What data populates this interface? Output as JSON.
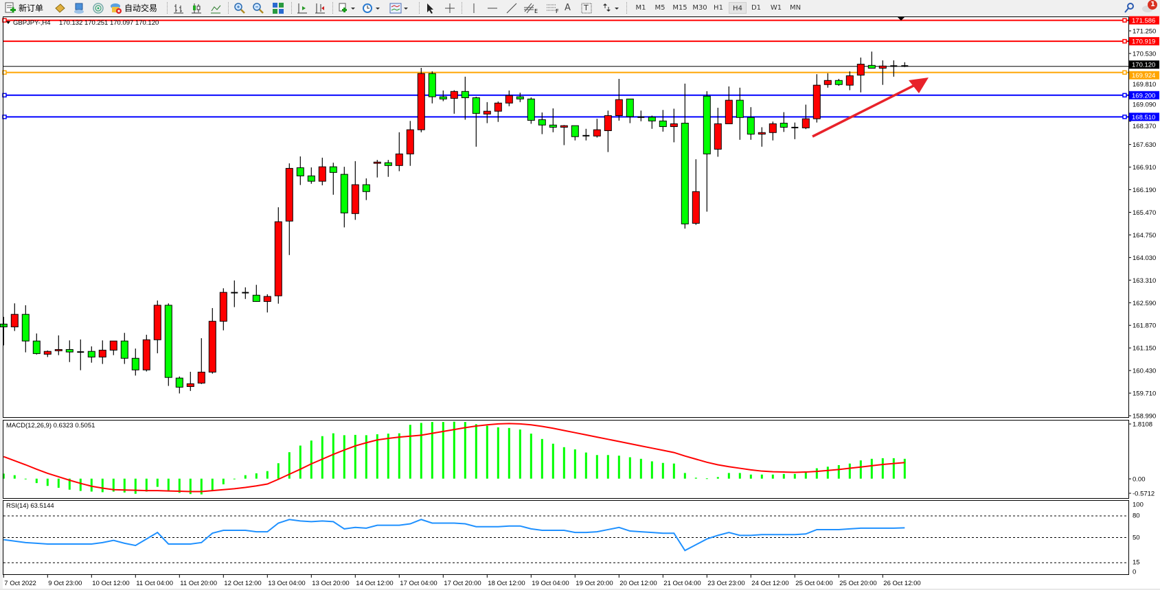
{
  "toolbar": {
    "new_order": "新订单",
    "auto_trading": "自动交易",
    "timeframes": [
      "M1",
      "M5",
      "M15",
      "M30",
      "H1",
      "H4",
      "D1",
      "W1",
      "MN"
    ],
    "active_timeframe": "H4",
    "notification_count": "1",
    "drawing_tools": {
      "fibo_channel_letter": "E",
      "fibo_retracement_letter": "F",
      "text": "A",
      "text_label": "T"
    }
  },
  "chart": {
    "symbol_info": "GBPJPY-,H4",
    "ohlc": "170.132 170.251 170.097 170.120",
    "colors": {
      "bull": "#ff0000",
      "bear": "#00ff00",
      "background": "#ffffff",
      "foreground": "#000000"
    },
    "price_axis_ticks": [
      "171.250",
      "170.530",
      "169.810",
      "169.090",
      "168.370",
      "167.630",
      "166.910",
      "166.190",
      "165.470",
      "164.750",
      "164.030",
      "163.310",
      "162.590",
      "161.870",
      "161.150",
      "160.430",
      "159.710",
      "158.990"
    ],
    "current_price": "170.120",
    "horizontal_lines": [
      {
        "price": "171.586",
        "color": "#ff0000"
      },
      {
        "price": "170.919",
        "color": "#ff0000"
      },
      {
        "price": "169.924",
        "color": "#ffa500"
      },
      {
        "price": "169.200",
        "color": "#0000ff"
      },
      {
        "price": "168.510",
        "color": "#0000ff"
      }
    ],
    "trend_arrow_color": "#e8222a",
    "time_labels": [
      "7 Oct 2022",
      "9 Oct 23:00",
      "10 Oct 12:00",
      "11 Oct 04:00",
      "11 Oct 20:00",
      "12 Oct 12:00",
      "13 Oct 04:00",
      "13 Oct 20:00",
      "14 Oct 12:00",
      "17 Oct 04:00",
      "17 Oct 20:00",
      "18 Oct 12:00",
      "19 Oct 04:00",
      "19 Oct 20:00",
      "20 Oct 12:00",
      "21 Oct 04:00",
      "23 Oct 23:00",
      "24 Oct 12:00",
      "25 Oct 04:00",
      "25 Oct 20:00",
      "26 Oct 12:00"
    ],
    "candles_ohlc": [
      [
        161.91,
        162.14,
        161.23,
        161.82
      ],
      [
        161.82,
        162.57,
        161.69,
        162.22
      ],
      [
        162.22,
        162.51,
        161.01,
        161.37
      ],
      [
        161.37,
        161.61,
        160.94,
        160.97
      ],
      [
        160.95,
        161.07,
        160.86,
        161.04
      ],
      [
        161.06,
        161.55,
        160.92,
        161.1
      ],
      [
        161.1,
        161.39,
        160.7,
        161.02
      ],
      [
        161.02,
        161.42,
        160.44,
        161.02
      ],
      [
        161.04,
        161.2,
        160.68,
        160.86
      ],
      [
        160.86,
        161.39,
        160.64,
        161.08
      ],
      [
        161.08,
        161.37,
        160.92,
        161.37
      ],
      [
        161.37,
        161.63,
        160.64,
        160.82
      ],
      [
        160.82,
        161.13,
        160.27,
        160.45
      ],
      [
        160.45,
        161.57,
        160.4,
        161.41
      ],
      [
        161.41,
        162.66,
        160.98,
        162.51
      ],
      [
        162.51,
        162.57,
        159.94,
        160.21
      ],
      [
        160.19,
        160.24,
        159.7,
        159.9
      ],
      [
        159.92,
        160.39,
        159.78,
        160.01
      ],
      [
        160.03,
        161.46,
        160.0,
        160.38
      ],
      [
        160.38,
        162.42,
        160.33,
        162.0
      ],
      [
        162.0,
        163.05,
        161.71,
        162.92
      ],
      [
        162.91,
        163.3,
        162.45,
        162.91
      ],
      [
        162.91,
        163.08,
        162.71,
        162.91
      ],
      [
        162.83,
        163.16,
        162.62,
        162.63
      ],
      [
        162.63,
        162.86,
        162.28,
        162.79
      ],
      [
        162.81,
        165.63,
        162.56,
        165.17
      ],
      [
        165.19,
        167.03,
        164.11,
        166.87
      ],
      [
        166.89,
        167.25,
        166.34,
        166.63
      ],
      [
        166.63,
        166.9,
        166.38,
        166.46
      ],
      [
        166.46,
        167.21,
        166.33,
        166.92
      ],
      [
        166.92,
        167.05,
        166.03,
        166.74
      ],
      [
        166.68,
        166.92,
        164.99,
        165.45
      ],
      [
        165.43,
        167.1,
        165.23,
        166.35
      ],
      [
        166.35,
        166.55,
        165.86,
        166.13
      ],
      [
        167.03,
        167.14,
        166.58,
        167.07
      ],
      [
        167.05,
        167.14,
        166.6,
        166.96
      ],
      [
        166.96,
        168.02,
        166.78,
        167.33
      ],
      [
        167.33,
        168.38,
        166.95,
        168.1
      ],
      [
        168.1,
        170.07,
        168.02,
        169.89
      ],
      [
        169.89,
        169.96,
        168.94,
        169.15
      ],
      [
        169.15,
        169.35,
        169.01,
        169.08
      ],
      [
        169.1,
        169.36,
        168.61,
        169.32
      ],
      [
        169.32,
        169.79,
        168.42,
        169.12
      ],
      [
        169.12,
        169.15,
        167.56,
        168.62
      ],
      [
        168.6,
        168.98,
        168.31,
        168.69
      ],
      [
        168.69,
        169.0,
        168.35,
        168.95
      ],
      [
        168.95,
        169.35,
        168.85,
        169.19
      ],
      [
        169.15,
        169.28,
        168.98,
        169.08
      ],
      [
        169.08,
        169.13,
        168.29,
        168.4
      ],
      [
        168.42,
        168.65,
        167.96,
        168.25
      ],
      [
        168.25,
        168.78,
        168.02,
        168.18
      ],
      [
        168.18,
        168.25,
        167.61,
        168.23
      ],
      [
        168.23,
        168.23,
        167.76,
        167.88
      ],
      [
        167.91,
        168.13,
        167.76,
        167.91
      ],
      [
        167.9,
        168.45,
        167.85,
        168.1
      ],
      [
        168.07,
        168.71,
        167.39,
        168.55
      ],
      [
        168.55,
        169.72,
        168.39,
        169.06
      ],
      [
        169.08,
        169.08,
        168.31,
        168.52
      ],
      [
        168.5,
        168.71,
        168.37,
        168.49
      ],
      [
        168.5,
        168.55,
        168.13,
        168.38
      ],
      [
        168.38,
        168.73,
        168.04,
        168.2
      ],
      [
        168.2,
        168.77,
        167.7,
        168.29
      ],
      [
        168.31,
        169.57,
        164.95,
        165.1
      ],
      [
        165.12,
        167.16,
        165.07,
        166.13
      ],
      [
        169.17,
        169.33,
        165.49,
        167.33
      ],
      [
        167.48,
        168.8,
        167.24,
        168.29
      ],
      [
        168.29,
        169.48,
        168.29,
        169.04
      ],
      [
        169.04,
        169.44,
        167.78,
        168.49
      ],
      [
        168.49,
        168.82,
        167.78,
        167.96
      ],
      [
        167.96,
        168.18,
        167.56,
        168.01
      ],
      [
        168.01,
        168.36,
        167.76,
        168.29
      ],
      [
        168.31,
        168.66,
        168.03,
        168.18
      ],
      [
        168.17,
        168.33,
        167.8,
        168.17
      ],
      [
        168.16,
        168.9,
        168.12,
        168.45
      ],
      [
        168.45,
        169.87,
        168.33,
        169.52
      ],
      [
        169.54,
        169.9,
        169.44,
        169.67
      ],
      [
        169.67,
        169.72,
        169.5,
        169.54
      ],
      [
        169.52,
        169.96,
        169.36,
        169.82
      ],
      [
        169.84,
        170.4,
        169.29,
        170.19
      ],
      [
        170.15,
        170.59,
        170.06,
        170.06
      ],
      [
        170.06,
        170.31,
        169.53,
        170.13
      ],
      [
        170.13,
        170.31,
        169.79,
        170.13
      ],
      [
        170.132,
        170.251,
        170.097,
        170.12
      ]
    ]
  },
  "macd": {
    "label": "MACD(12,26,9) 0.6323 0.5051",
    "axis_labels": [
      "1.8108",
      "0.00",
      "-0.5712"
    ],
    "range": [
      -0.5712,
      1.8108
    ],
    "histogram_color": "#00ff00",
    "signal_color": "#ff0000",
    "histogram": [
      0.16,
      0.11,
      -0.02,
      -0.14,
      -0.23,
      -0.29,
      -0.35,
      -0.39,
      -0.41,
      -0.43,
      -0.41,
      -0.44,
      -0.48,
      -0.41,
      -0.26,
      -0.41,
      -0.45,
      -0.49,
      -0.5,
      -0.4,
      -0.18,
      -0.02,
      0.11,
      0.17,
      0.24,
      0.49,
      0.84,
      1.05,
      1.21,
      1.35,
      1.44,
      1.38,
      1.39,
      1.38,
      1.41,
      1.43,
      1.44,
      1.71,
      1.77,
      1.8,
      1.8,
      1.81,
      1.8,
      1.73,
      1.68,
      1.63,
      1.61,
      1.56,
      1.43,
      1.26,
      1.11,
      1.0,
      0.93,
      0.83,
      0.75,
      0.75,
      0.73,
      0.68,
      0.63,
      0.55,
      0.5,
      0.48,
      0.18,
      0.03,
      0.01,
      0.05,
      0.18,
      0.18,
      0.13,
      0.13,
      0.13,
      0.15,
      0.15,
      0.2,
      0.33,
      0.38,
      0.43,
      0.48,
      0.58,
      0.63,
      0.65,
      0.65,
      0.63
    ],
    "signal": [
      0.7,
      0.57,
      0.44,
      0.3,
      0.17,
      0.06,
      -0.05,
      -0.15,
      -0.24,
      -0.3,
      -0.35,
      -0.36,
      -0.37,
      -0.38,
      -0.38,
      -0.39,
      -0.4,
      -0.41,
      -0.41,
      -0.38,
      -0.35,
      -0.32,
      -0.28,
      -0.23,
      -0.17,
      -0.02,
      0.14,
      0.3,
      0.47,
      0.62,
      0.77,
      0.91,
      1.04,
      1.14,
      1.23,
      1.28,
      1.32,
      1.35,
      1.38,
      1.44,
      1.5,
      1.56,
      1.62,
      1.67,
      1.71,
      1.74,
      1.75,
      1.74,
      1.71,
      1.66,
      1.6,
      1.53,
      1.46,
      1.39,
      1.32,
      1.25,
      1.18,
      1.11,
      1.04,
      0.97,
      0.9,
      0.83,
      0.72,
      0.62,
      0.52,
      0.44,
      0.38,
      0.33,
      0.28,
      0.24,
      0.22,
      0.21,
      0.2,
      0.21,
      0.23,
      0.26,
      0.29,
      0.33,
      0.37,
      0.41,
      0.45,
      0.48,
      0.51
    ]
  },
  "rsi": {
    "label": "RSI(14) 63.5144",
    "axis_labels": [
      "100",
      "80",
      "50",
      "15",
      "0"
    ],
    "levels": [
      80,
      50,
      15
    ],
    "line_color": "#1e90ff",
    "values": [
      47,
      45,
      43,
      42,
      41,
      41,
      41,
      41,
      41,
      43,
      46,
      42,
      39,
      48,
      57,
      41,
      41,
      41,
      43,
      56,
      60,
      60,
      60,
      58,
      58,
      70,
      75,
      73,
      72,
      73,
      72,
      62,
      64,
      63,
      67,
      67,
      67,
      69,
      75,
      70,
      70,
      70,
      69,
      65,
      65,
      65,
      66,
      66,
      62,
      60,
      60,
      60,
      57,
      57,
      58,
      61,
      64,
      59,
      58,
      57,
      56,
      56,
      32,
      40,
      48,
      53,
      57,
      53,
      53,
      54,
      54,
      54,
      54,
      55,
      61,
      61,
      61,
      62,
      63,
      63,
      63,
      63,
      63.5
    ]
  }
}
